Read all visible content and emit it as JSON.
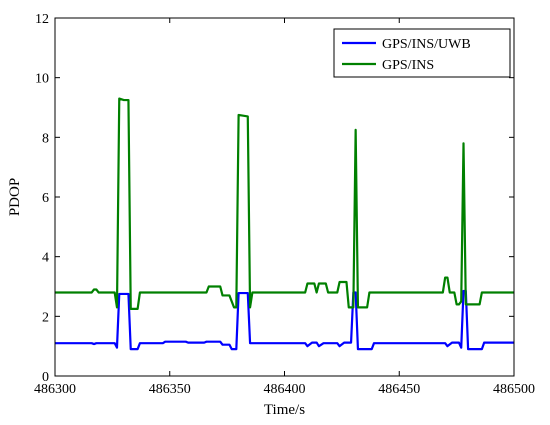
{
  "chart_data": {
    "type": "line",
    "xlabel": "Time/s",
    "ylabel": "PDOP",
    "xlim": [
      486300,
      486500
    ],
    "ylim": [
      0,
      12
    ],
    "xticks": [
      486300,
      486350,
      486400,
      486450,
      486500
    ],
    "yticks": [
      0,
      2,
      4,
      6,
      8,
      10,
      12
    ],
    "grid": false,
    "legend_position": "top-right",
    "series": [
      {
        "name": "GPS/INS/UWB",
        "color": "#0000ff",
        "points": [
          [
            486300,
            1.1
          ],
          [
            486316,
            1.1
          ],
          [
            486317,
            1.07
          ],
          [
            486318,
            1.1
          ],
          [
            486326,
            1.1
          ],
          [
            486327,
            0.95
          ],
          [
            486328,
            2.75
          ],
          [
            486332,
            2.75
          ],
          [
            486333,
            0.9
          ],
          [
            486336,
            0.9
          ],
          [
            486337,
            1.1
          ],
          [
            486347,
            1.1
          ],
          [
            486348,
            1.15
          ],
          [
            486357,
            1.15
          ],
          [
            486358,
            1.12
          ],
          [
            486365,
            1.12
          ],
          [
            486366,
            1.15
          ],
          [
            486372,
            1.15
          ],
          [
            486373,
            1.05
          ],
          [
            486376,
            1.05
          ],
          [
            486377,
            0.9
          ],
          [
            486379,
            0.9
          ],
          [
            486380,
            2.78
          ],
          [
            486384,
            2.78
          ],
          [
            486385,
            1.1
          ],
          [
            486409,
            1.1
          ],
          [
            486410,
            1.0
          ],
          [
            486412,
            1.12
          ],
          [
            486414,
            1.12
          ],
          [
            486415,
            1.0
          ],
          [
            486417,
            1.1
          ],
          [
            486423,
            1.1
          ],
          [
            486424,
            1.0
          ],
          [
            486426,
            1.12
          ],
          [
            486429,
            1.12
          ],
          [
            486430,
            2.8
          ],
          [
            486431,
            2.8
          ],
          [
            486432,
            0.9
          ],
          [
            486438,
            0.9
          ],
          [
            486439,
            1.1
          ],
          [
            486470,
            1.1
          ],
          [
            486471,
            1.0
          ],
          [
            486473,
            1.12
          ],
          [
            486476,
            1.12
          ],
          [
            486477,
            0.95
          ],
          [
            486478,
            2.85
          ],
          [
            486479,
            2.85
          ],
          [
            486480,
            0.9
          ],
          [
            486486,
            0.9
          ],
          [
            486487,
            1.12
          ],
          [
            486500,
            1.12
          ]
        ]
      },
      {
        "name": "GPS/INS",
        "color": "#008000",
        "points": [
          [
            486300,
            2.8
          ],
          [
            486316,
            2.8
          ],
          [
            486317,
            2.9
          ],
          [
            486318,
            2.9
          ],
          [
            486319,
            2.8
          ],
          [
            486326,
            2.8
          ],
          [
            486327,
            2.3
          ],
          [
            486328,
            9.3
          ],
          [
            486330,
            9.25
          ],
          [
            486332,
            9.25
          ],
          [
            486333,
            2.25
          ],
          [
            486336,
            2.25
          ],
          [
            486337,
            2.8
          ],
          [
            486366,
            2.8
          ],
          [
            486367,
            3.0
          ],
          [
            486372,
            3.0
          ],
          [
            486373,
            2.7
          ],
          [
            486376,
            2.7
          ],
          [
            486378,
            2.3
          ],
          [
            486379,
            2.3
          ],
          [
            486380,
            8.75
          ],
          [
            486384,
            8.7
          ],
          [
            486385,
            2.3
          ],
          [
            486386,
            2.8
          ],
          [
            486409,
            2.8
          ],
          [
            486410,
            3.1
          ],
          [
            486413,
            3.1
          ],
          [
            486414,
            2.8
          ],
          [
            486415,
            3.1
          ],
          [
            486418,
            3.1
          ],
          [
            486419,
            2.8
          ],
          [
            486423,
            2.8
          ],
          [
            486424,
            3.15
          ],
          [
            486427,
            3.15
          ],
          [
            486428,
            2.3
          ],
          [
            486430,
            2.3
          ],
          [
            486431,
            8.25
          ],
          [
            486432,
            2.3
          ],
          [
            486433,
            2.3
          ],
          [
            486436,
            2.3
          ],
          [
            486437,
            2.8
          ],
          [
            486469,
            2.8
          ],
          [
            486470,
            3.3
          ],
          [
            486471,
            3.3
          ],
          [
            486472,
            2.8
          ],
          [
            486474,
            2.8
          ],
          [
            486475,
            2.4
          ],
          [
            486476,
            2.4
          ],
          [
            486477,
            2.5
          ],
          [
            486478,
            7.8
          ],
          [
            486479,
            2.4
          ],
          [
            486480,
            2.4
          ],
          [
            486485,
            2.4
          ],
          [
            486486,
            2.8
          ],
          [
            486500,
            2.8
          ]
        ]
      }
    ]
  }
}
